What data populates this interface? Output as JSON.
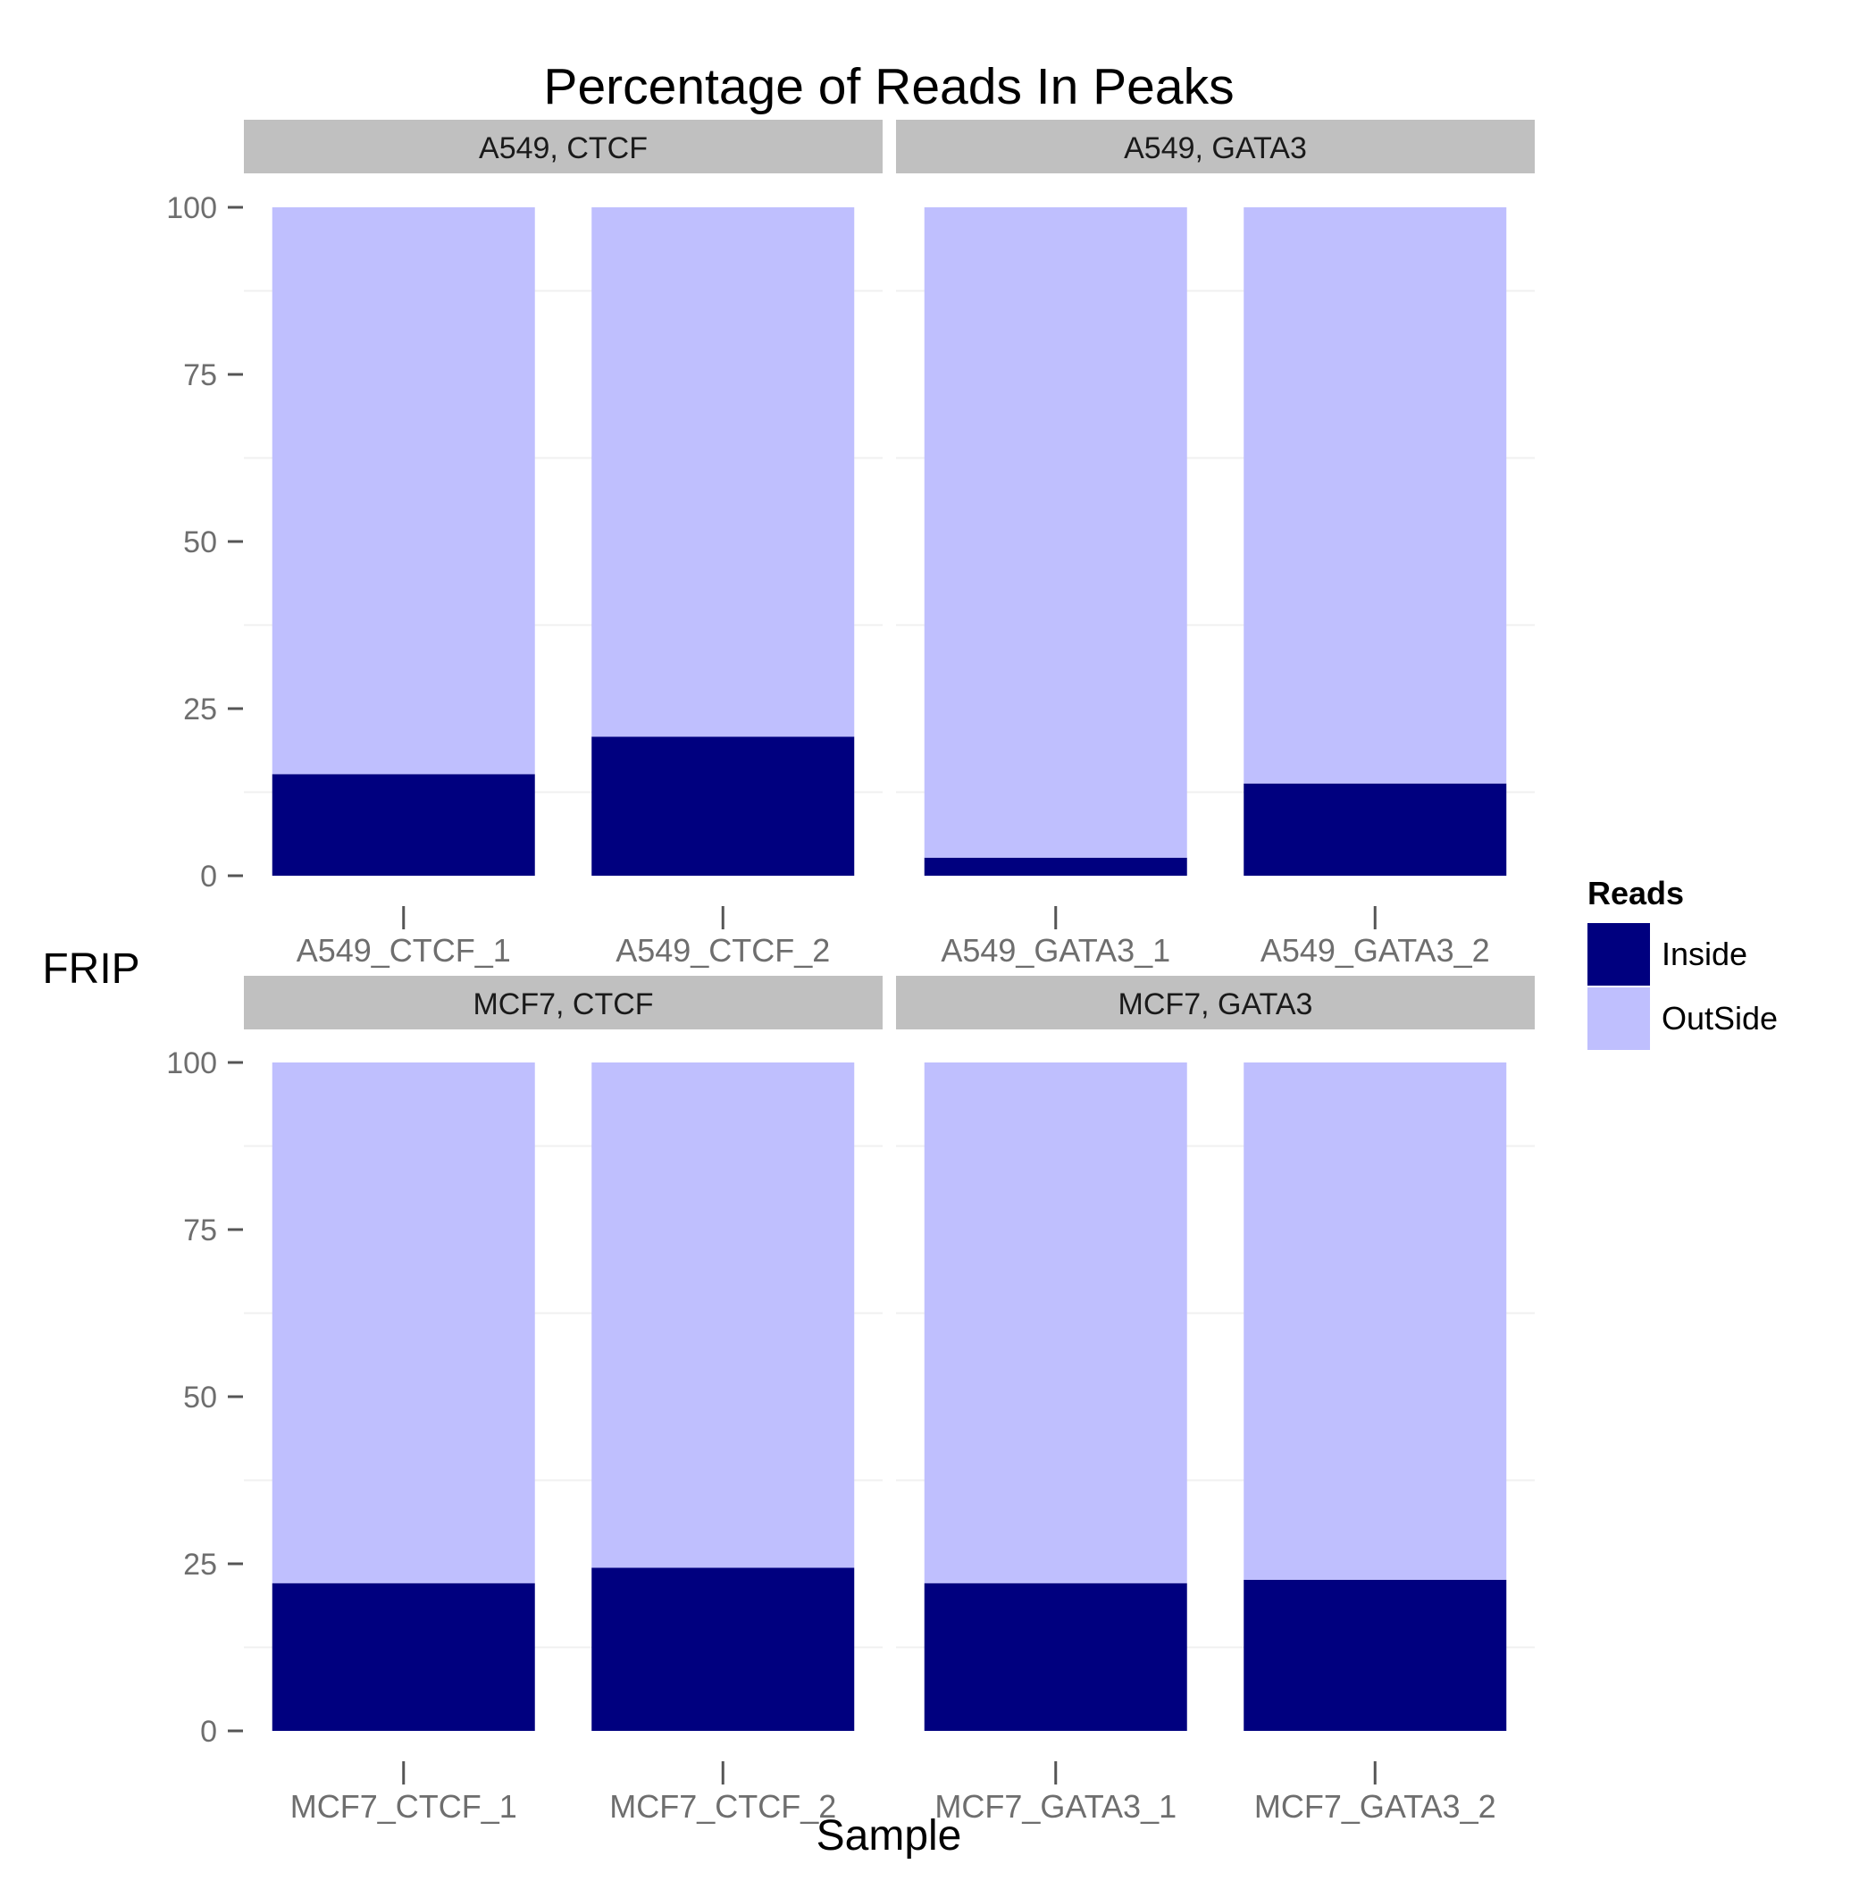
{
  "chart_data": {
    "type": "bar",
    "stacked": true,
    "faceted": true,
    "title": "Percentage of Reads In Peaks",
    "xlabel": "Sample",
    "ylabel": "FRIP",
    "ylim": [
      0,
      100
    ],
    "yticks": [
      0,
      25,
      50,
      75,
      100
    ],
    "grid": true,
    "legend": {
      "title": "Reads",
      "position": "right",
      "entries": [
        {
          "name": "Inside",
          "color": "#00007f"
        },
        {
          "name": "OutSide",
          "color": "#bfbffe"
        }
      ]
    },
    "series_colors": {
      "Inside": "#00007f",
      "OutSide": "#bfbffe"
    },
    "panel_colors": {
      "strip": "#c0c0c0",
      "tick_text": "#6e6e6e",
      "tick": "#555555",
      "grid": "#f0f0f0"
    },
    "panels": [
      {
        "strip": "A549, CTCF",
        "categories": [
          "A549_CTCF_1",
          "A549_CTCF_2"
        ],
        "series": [
          {
            "name": "Inside",
            "values": [
              15.2,
              20.8
            ]
          },
          {
            "name": "OutSide",
            "values": [
              84.8,
              79.2
            ]
          }
        ]
      },
      {
        "strip": "A549, GATA3",
        "categories": [
          "A549_GATA3_1",
          "A549_GATA3_2"
        ],
        "series": [
          {
            "name": "Inside",
            "values": [
              2.7,
              13.8
            ]
          },
          {
            "name": "OutSide",
            "values": [
              97.3,
              86.2
            ]
          }
        ]
      },
      {
        "strip": "MCF7, CTCF",
        "categories": [
          "MCF7_CTCF_1",
          "MCF7_CTCF_2"
        ],
        "series": [
          {
            "name": "Inside",
            "values": [
              22.1,
              24.4
            ]
          },
          {
            "name": "OutSide",
            "values": [
              77.9,
              75.6
            ]
          }
        ]
      },
      {
        "strip": "MCF7, GATA3",
        "categories": [
          "MCF7_GATA3_1",
          "MCF7_GATA3_2"
        ],
        "series": [
          {
            "name": "Inside",
            "values": [
              22.1,
              22.6
            ]
          },
          {
            "name": "OutSide",
            "values": [
              77.9,
              77.4
            ]
          }
        ]
      }
    ]
  }
}
